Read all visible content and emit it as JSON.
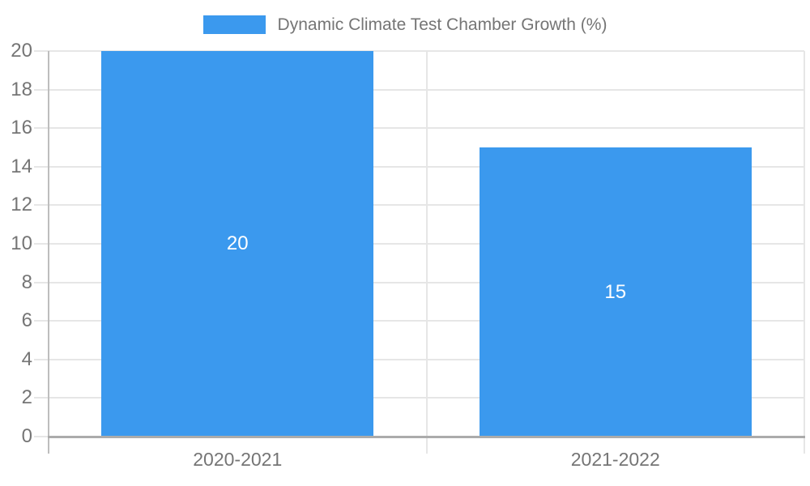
{
  "chart_data": {
    "type": "bar",
    "legend_label": "Dynamic Climate Test Chamber Growth (%)",
    "legend_position": "top",
    "categories": [
      "2020-2021",
      "2021-2022"
    ],
    "values": [
      20,
      15
    ],
    "bar_labels": [
      "20",
      "15"
    ],
    "ylim": [
      0,
      20
    ],
    "ytick_step": 2,
    "ytick_labels": [
      "0",
      "2",
      "4",
      "6",
      "8",
      "10",
      "12",
      "14",
      "16",
      "18",
      "20"
    ],
    "grid": true,
    "colors": {
      "bar": "#3B99EE",
      "bar_value_text": "#FFFFFF",
      "label_text": "#757575",
      "grid": "#E6E6E6",
      "axis": "#ABABAB",
      "y_axis": "#BDBDBD",
      "background": "#FFFFFF"
    }
  }
}
